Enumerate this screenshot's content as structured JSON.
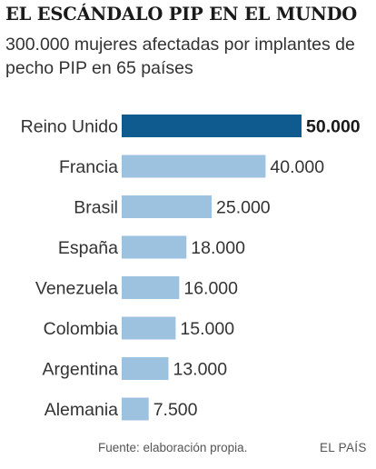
{
  "title": "EL ESCÁNDALO PIP EN EL MUNDO",
  "subtitle": "300.000 mujeres afectadas por implantes de pecho PIP en 65 países",
  "source": "Fuente: elaboración propia.",
  "brand": "EL PAÍS",
  "colors": {
    "highlight": "#0f5a8e",
    "bar": "#9cc2df",
    "text": "#333333"
  },
  "chart_data": {
    "type": "bar",
    "orientation": "horizontal",
    "categories": [
      "Reino Unido",
      "Francia",
      "Brasil",
      "España",
      "Venezuela",
      "Colombia",
      "Argentina",
      "Alemania"
    ],
    "values": [
      50000,
      40000,
      25000,
      18000,
      16000,
      15000,
      13000,
      7500
    ],
    "value_labels": [
      "50.000",
      "40.000",
      "25.000",
      "18.000",
      "16.000",
      "15.000",
      "13.000",
      "7.500"
    ],
    "highlight_index": 0,
    "xlim": [
      0,
      50000
    ],
    "grid": false,
    "title": "",
    "xlabel": "",
    "ylabel": ""
  }
}
